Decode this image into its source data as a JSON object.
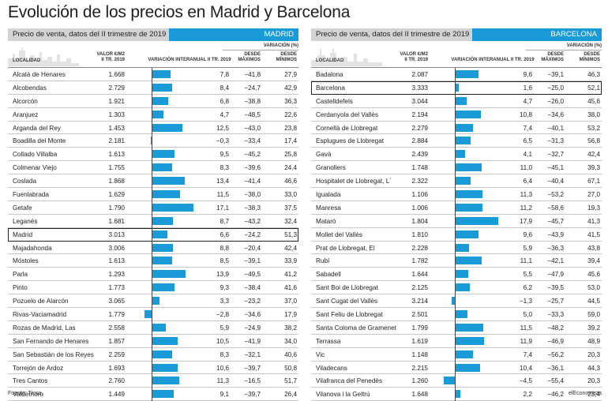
{
  "title": "Evolución de los precios en Madrid y Barcelona",
  "source": "Fuente: Tinsa.",
  "brand": "elEconomista",
  "accent_color": "#1a9bd7",
  "headers": {
    "localidad": "LOCALIDAD",
    "valor_l1": "VALOR €/M2",
    "valor_l2": "II TR. 2019",
    "variacion_interanual": "VARIACIÓN INTERANUAL II TR. 2019",
    "variacion_pct": "VARIACIÓN (%)",
    "desde_l1": "DESDE",
    "max_l2": "MÁXIMOS",
    "min_l2": "MÍNIMOS"
  },
  "chart_data": [
    {
      "type": "table",
      "city": "MADRID",
      "subtitle": "Precio de venta, datos del II trimestre de 2019",
      "highlight": "Madrid",
      "rows": [
        {
          "name": "Alcalá de Henares",
          "price": "1.668",
          "change": 7.8,
          "change_label": "7,8",
          "from_max": "−41,8",
          "from_min": "27,9"
        },
        {
          "name": "Alcobendas",
          "price": "2.729",
          "change": 8.4,
          "change_label": "8,4",
          "from_max": "−24,7",
          "from_min": "42,9"
        },
        {
          "name": "Alcorcón",
          "price": "1.921",
          "change": 6.8,
          "change_label": "6,8",
          "from_max": "−38,8",
          "from_min": "36,3"
        },
        {
          "name": "Aranjuez",
          "price": "1.303",
          "change": 4.7,
          "change_label": "4,7",
          "from_max": "−48,5",
          "from_min": "22,6"
        },
        {
          "name": "Arganda del Rey",
          "price": "1.453",
          "change": 12.5,
          "change_label": "12,5",
          "from_max": "−43,0",
          "from_min": "23,8"
        },
        {
          "name": "Boadilla del Monte",
          "price": "2.181",
          "change": -0.3,
          "change_label": "−0,3",
          "from_max": "−33,4",
          "from_min": "17,4"
        },
        {
          "name": "Collado Villalba",
          "price": "1.613",
          "price_note": "",
          "change": 9.5,
          "change_label": "9,5",
          "from_max": "−45,2",
          "from_min": "25,8"
        },
        {
          "name": "Colmenar Viejo",
          "price": "1.755",
          "change": 8.3,
          "change_label": "8,3",
          "from_max": "−39,6",
          "from_min": "24,4"
        },
        {
          "name": "Coslada",
          "price": "1.868",
          "change": 13.4,
          "change_label": "13,4",
          "from_max": "−41,4",
          "from_min": "46,6"
        },
        {
          "name": "Fuenlabrada",
          "price": "1.629",
          "change": 11.5,
          "change_label": "11,5",
          "from_max": "−38,0",
          "from_min": "33,0"
        },
        {
          "name": "Getafe",
          "price": "1.790",
          "change": 17.1,
          "change_label": "17,1",
          "from_max": "−38,3",
          "from_min": "37,5"
        },
        {
          "name": "Leganés",
          "price": "1.681",
          "change": 8.7,
          "change_label": "8,7",
          "from_max": "−43,2",
          "from_min": "32,4"
        },
        {
          "name": "Madrid",
          "price": "3.013",
          "change": 6.6,
          "change_label": "6,6",
          "from_max": "−24,2",
          "from_min": "51,3"
        },
        {
          "name": "Majadahonda",
          "price": "3.006",
          "change": 8.8,
          "change_label": "8,8",
          "from_max": "−20,4",
          "from_min": "42,4"
        },
        {
          "name": "Móstoles",
          "price": "1.613",
          "change": 8.5,
          "change_label": "8,5",
          "from_max": "−39,1",
          "from_min": "33,9"
        },
        {
          "name": "Parla",
          "price": "1.293",
          "change": 13.9,
          "change_label": "13,9",
          "from_max": "−49,5",
          "from_min": "41,2"
        },
        {
          "name": "Pinto",
          "price": "1.773",
          "change": 9.3,
          "change_label": "9,3",
          "from_max": "−38,4",
          "from_min": "41,6"
        },
        {
          "name": "Pozuelo de Alarcón",
          "price": "3.065",
          "change": 3.3,
          "change_label": "3,3",
          "from_max": "−23,2",
          "from_min": "37,0"
        },
        {
          "name": "Rivas-Vaciamadrid",
          "price": "1.779",
          "change": -2.8,
          "change_label": "−2,8",
          "from_max": "−34,6",
          "from_min": "17,9"
        },
        {
          "name": "Rozas de Madrid, Las",
          "price": "2.558",
          "change": 5.9,
          "change_label": "5,9",
          "from_max": "−24,9",
          "from_min": "38,2"
        },
        {
          "name": "San Fernando de Henares",
          "price": "1.857",
          "change": 10.5,
          "change_label": "10,5",
          "from_max": "−41,9",
          "from_min": "34,0"
        },
        {
          "name": "San Sebastián de los Reyes",
          "price": "2.259",
          "change": 8.3,
          "change_label": "8,3",
          "from_max": "−32,1",
          "from_min": "40,6"
        },
        {
          "name": "Torrejón de Ardoz",
          "price": "1.693",
          "change": 10.6,
          "change_label": "10,6",
          "from_max": "−39,7",
          "from_min": "50,8"
        },
        {
          "name": "Tres Cantos",
          "price": "2.760",
          "change": 11.3,
          "change_label": "11,3",
          "from_max": "−16,5",
          "from_min": "51,7"
        },
        {
          "name": "Valdemoro",
          "price": "1.449",
          "change": 9.1,
          "change_label": "9,1",
          "from_max": "−39,7",
          "from_min": "26,4"
        }
      ]
    },
    {
      "type": "table",
      "city": "BARCELONA",
      "subtitle": "Precio de venta, datos del II trimestre de 2019",
      "highlight": "Barcelona",
      "rows": [
        {
          "name": "Badalona",
          "price": "2.087",
          "change": 9.6,
          "change_label": "9,6",
          "from_max": "−39,1",
          "from_min": "46,3"
        },
        {
          "name": "Barcelona",
          "price": "3.333",
          "change": 1.6,
          "change_label": "1,6",
          "from_max": "−25,0",
          "from_min": "52,1"
        },
        {
          "name": "Castelldefels",
          "price": "3.044",
          "change": 4.7,
          "change_label": "4,7",
          "from_max": "−26,0",
          "from_min": "45,6"
        },
        {
          "name": "Cerdanyola del Vallès",
          "price": "2.194",
          "change": 10.8,
          "change_label": "10,8",
          "from_max": "−34,6",
          "from_min": "38,0"
        },
        {
          "name": "Cornellà de Llobregat",
          "price": "2.279",
          "change": 7.4,
          "change_label": "7,4",
          "from_max": "−40,1",
          "from_min": "53,2"
        },
        {
          "name": "Esplugues de Llobregat",
          "price": "2.884",
          "change": 6.5,
          "change_label": "6,5",
          "from_max": "−31,3",
          "from_min": "56,8"
        },
        {
          "name": "Gavà",
          "price": "2.439",
          "change": 4.1,
          "change_label": "4,1",
          "from_max": "−32,7",
          "from_min": "42,4"
        },
        {
          "name": "Granollers",
          "price": "1.748",
          "change": 11.0,
          "change_label": "11,0",
          "from_max": "−45,1",
          "from_min": "39,3"
        },
        {
          "name": "Hospitalet de Llobregat, L´",
          "price": "2.322",
          "change": 6.4,
          "change_label": "6,4",
          "from_max": "−40,4",
          "from_min": "67,1"
        },
        {
          "name": "Igualada",
          "price": "1.106",
          "change": 11.3,
          "change_label": "11,3",
          "from_max": "−53,2",
          "from_min": "27,0"
        },
        {
          "name": "Manresa",
          "price": "1.006",
          "change": 11.2,
          "change_label": "11,2",
          "from_max": "−58,6",
          "from_min": "19,3"
        },
        {
          "name": "Mataró",
          "price": "1.804",
          "change": 17.9,
          "change_label": "17,9",
          "from_max": "−45,7",
          "from_min": "41,3"
        },
        {
          "name": "Mollet del Vallès",
          "price": "1.810",
          "change": 9.6,
          "change_label": "9,6",
          "from_max": "−43,9",
          "from_min": "41,5"
        },
        {
          "name": "Prat de Llobregat, El",
          "price": "2.228",
          "change": 5.9,
          "change_label": "5,9",
          "from_max": "−36,3",
          "from_min": "43,8"
        },
        {
          "name": "Rubí",
          "price": "1.782",
          "change": 11.1,
          "change_label": "11,1",
          "from_max": "−42,1",
          "from_min": "39,4"
        },
        {
          "name": "Sabadell",
          "price": "1.644",
          "change": 5.5,
          "change_label": "5,5",
          "from_max": "−47,9",
          "from_min": "45,6"
        },
        {
          "name": "Sant Boi de Llobregat",
          "price": "2.125",
          "change": 6.2,
          "change_label": "6,2",
          "from_max": "−39,5",
          "from_min": "53,0"
        },
        {
          "name": "Sant Cugat del Vallès",
          "price": "3.214",
          "change": -1.3,
          "change_label": "−1,3",
          "from_max": "−25,7",
          "from_min": "44,5"
        },
        {
          "name": "Sant Feliu de Llobregat",
          "price": "2.501",
          "change": 5.0,
          "change_label": "5,0",
          "from_max": "−33,3",
          "from_min": "59,0"
        },
        {
          "name": "Santa Coloma de Gramenet",
          "price": "1.799",
          "change": 11.5,
          "change_label": "11,5",
          "from_max": "−48,2",
          "from_min": "39,2"
        },
        {
          "name": "Terrassa",
          "price": "1.619",
          "change": 11.9,
          "change_label": "11,9",
          "from_max": "−46,9",
          "from_min": "48,9"
        },
        {
          "name": "Vic",
          "price": "1.148",
          "change": 7.4,
          "change_label": "7,4",
          "from_max": "−56,2",
          "from_min": "20,3"
        },
        {
          "name": "Viladecans",
          "price": "2.215",
          "change": 10.4,
          "change_label": "10,4",
          "from_max": "−36,1",
          "from_min": "44,3"
        },
        {
          "name": "Vilafranca del Penedès",
          "price": "1.260",
          "change": -4.5,
          "change_label": "−4,5",
          "from_max": "−55,4",
          "from_min": "20,3"
        },
        {
          "name": "Vilanova i la Geltrú",
          "price": "1.648",
          "change": 2.2,
          "change_label": "2,2",
          "from_max": "−46,2",
          "from_min": "23,4"
        }
      ]
    }
  ]
}
